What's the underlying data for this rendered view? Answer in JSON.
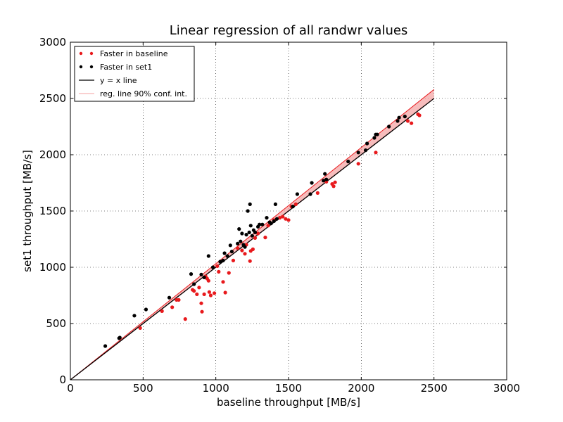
{
  "chart_data": {
    "type": "scatter",
    "title": "Linear regression of all randwr values",
    "xlabel": "baseline throughput [MB/s]",
    "ylabel": "set1 throughput [MB/s]",
    "xlim": [
      0,
      3000
    ],
    "ylim": [
      0,
      3000
    ],
    "xticks": [
      "0",
      "500",
      "1000",
      "1500",
      "2000",
      "2500",
      "3000"
    ],
    "yticks": [
      "0",
      "500",
      "1000",
      "1500",
      "2000",
      "2500",
      "3000"
    ],
    "grid": true,
    "legend_position": "top-left",
    "legend": [
      {
        "label": "Faster in baseline",
        "kind": "dots",
        "color": "#e8191c"
      },
      {
        "label": "Faster in set1",
        "kind": "dots",
        "color": "#000000"
      },
      {
        "label": "y = x line",
        "kind": "line",
        "color": "#000000"
      },
      {
        "label": "reg. line 90% conf. int.",
        "kind": "line",
        "color": "#f4a0a0"
      }
    ],
    "series": [
      {
        "name": "Faster in baseline",
        "color": "#e8191c",
        "points": [
          [
            480,
            460
          ],
          [
            630,
            610
          ],
          [
            700,
            645
          ],
          [
            730,
            710
          ],
          [
            745,
            710
          ],
          [
            790,
            540
          ],
          [
            840,
            800
          ],
          [
            850,
            790
          ],
          [
            870,
            760
          ],
          [
            885,
            820
          ],
          [
            900,
            680
          ],
          [
            905,
            605
          ],
          [
            920,
            760
          ],
          [
            930,
            920
          ],
          [
            940,
            900
          ],
          [
            950,
            880
          ],
          [
            955,
            780
          ],
          [
            965,
            750
          ],
          [
            990,
            770
          ],
          [
            1010,
            1010
          ],
          [
            1020,
            960
          ],
          [
            1050,
            870
          ],
          [
            1065,
            775
          ],
          [
            1090,
            950
          ],
          [
            1120,
            1060
          ],
          [
            1150,
            1170
          ],
          [
            1180,
            1150
          ],
          [
            1200,
            1120
          ],
          [
            1210,
            1200
          ],
          [
            1235,
            1055
          ],
          [
            1240,
            1145
          ],
          [
            1255,
            1160
          ],
          [
            1270,
            1260
          ],
          [
            1290,
            1300
          ],
          [
            1340,
            1265
          ],
          [
            1360,
            1370
          ],
          [
            1400,
            1420
          ],
          [
            1440,
            1440
          ],
          [
            1460,
            1450
          ],
          [
            1480,
            1430
          ],
          [
            1500,
            1420
          ],
          [
            1520,
            1540
          ],
          [
            1550,
            1560
          ],
          [
            1700,
            1660
          ],
          [
            1760,
            1760
          ],
          [
            1800,
            1740
          ],
          [
            1810,
            1720
          ],
          [
            1820,
            1755
          ],
          [
            1980,
            1920
          ],
          [
            2100,
            2020
          ],
          [
            2320,
            2300
          ],
          [
            2345,
            2280
          ],
          [
            2390,
            2360
          ],
          [
            2400,
            2350
          ]
        ]
      },
      {
        "name": "Faster in set1",
        "color": "#000000",
        "points": [
          [
            240,
            300
          ],
          [
            335,
            370
          ],
          [
            340,
            375
          ],
          [
            440,
            570
          ],
          [
            520,
            625
          ],
          [
            680,
            730
          ],
          [
            830,
            940
          ],
          [
            850,
            850
          ],
          [
            900,
            935
          ],
          [
            920,
            910
          ],
          [
            950,
            1100
          ],
          [
            980,
            1000
          ],
          [
            1030,
            1050
          ],
          [
            1050,
            1060
          ],
          [
            1060,
            1125
          ],
          [
            1080,
            1100
          ],
          [
            1100,
            1195
          ],
          [
            1110,
            1140
          ],
          [
            1150,
            1210
          ],
          [
            1160,
            1340
          ],
          [
            1170,
            1230
          ],
          [
            1180,
            1300
          ],
          [
            1190,
            1200
          ],
          [
            1200,
            1180
          ],
          [
            1210,
            1290
          ],
          [
            1220,
            1500
          ],
          [
            1230,
            1310
          ],
          [
            1235,
            1560
          ],
          [
            1240,
            1370
          ],
          [
            1250,
            1280
          ],
          [
            1260,
            1330
          ],
          [
            1270,
            1310
          ],
          [
            1290,
            1360
          ],
          [
            1300,
            1380
          ],
          [
            1320,
            1380
          ],
          [
            1350,
            1440
          ],
          [
            1370,
            1400
          ],
          [
            1380,
            1390
          ],
          [
            1400,
            1410
          ],
          [
            1410,
            1560
          ],
          [
            1420,
            1430
          ],
          [
            1530,
            1540
          ],
          [
            1560,
            1650
          ],
          [
            1650,
            1650
          ],
          [
            1660,
            1750
          ],
          [
            1740,
            1770
          ],
          [
            1750,
            1830
          ],
          [
            1760,
            1780
          ],
          [
            1910,
            1940
          ],
          [
            1980,
            2020
          ],
          [
            2030,
            2040
          ],
          [
            2040,
            2100
          ],
          [
            2090,
            2150
          ],
          [
            2100,
            2180
          ],
          [
            2110,
            2180
          ],
          [
            2190,
            2250
          ],
          [
            2250,
            2300
          ],
          [
            2260,
            2330
          ],
          [
            2300,
            2340
          ]
        ]
      }
    ],
    "reference_line": {
      "name": "y = x line",
      "x": [
        0,
        2500
      ],
      "y": [
        0,
        2500
      ],
      "color": "#000000"
    },
    "regression": {
      "name": "reg. line 90% conf. int.",
      "color": "#e8191c",
      "band_color": "#f4a0a0",
      "x": [
        0,
        2500
      ],
      "center": [
        0,
        2540
      ],
      "lower": [
        0,
        2500
      ],
      "upper": [
        0,
        2580
      ]
    }
  }
}
